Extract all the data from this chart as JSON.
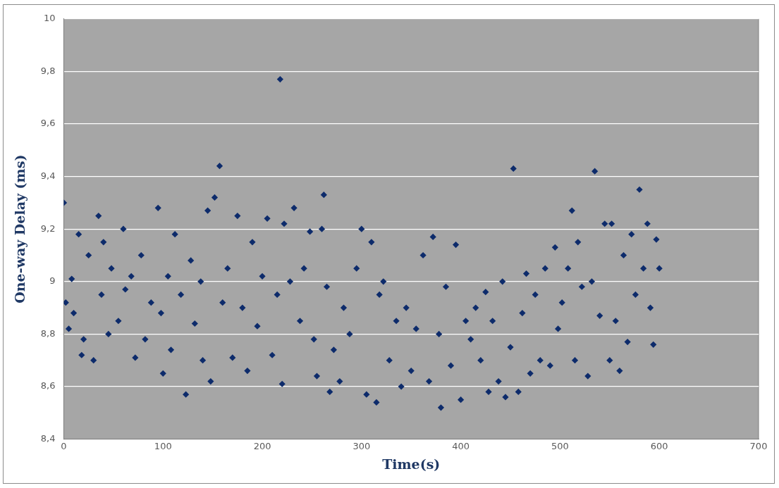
{
  "chart_data": {
    "type": "scatter",
    "xlabel": "Time(s)",
    "ylabel": "One-way Delay (ms)",
    "xlim": [
      0,
      700
    ],
    "xticks": [
      0,
      100,
      200,
      300,
      400,
      500,
      600,
      700
    ],
    "ylim": [
      8.4,
      10
    ],
    "yticks": [
      {
        "value": 8.4,
        "label": "8,4"
      },
      {
        "value": 8.6,
        "label": "8,6"
      },
      {
        "value": 8.8,
        "label": "8,8"
      },
      {
        "value": 9,
        "label": "9"
      },
      {
        "value": 9.2,
        "label": "9,2"
      },
      {
        "value": 9.4,
        "label": "9,4"
      },
      {
        "value": 9.6,
        "label": "9,6"
      },
      {
        "value": 9.8,
        "label": "9,8"
      },
      {
        "value": 10,
        "label": "10"
      }
    ],
    "grid": "y",
    "legend": false,
    "marker": "diamond",
    "series": [
      {
        "color": "#0d2b6b",
        "x": [
          0,
          2,
          5,
          8,
          10,
          15,
          18,
          20,
          25,
          30,
          35,
          38,
          40,
          45,
          48,
          55,
          60,
          62,
          68,
          72,
          78,
          82,
          88,
          95,
          98,
          100,
          105,
          108,
          112,
          118,
          123,
          128,
          132,
          138,
          140,
          145,
          148,
          152,
          157,
          160,
          165,
          170,
          175,
          180,
          185,
          190,
          195,
          200,
          205,
          210,
          215,
          218,
          220,
          222,
          228,
          232,
          238,
          242,
          248,
          252,
          255,
          260,
          262,
          265,
          268,
          272,
          278,
          282,
          288,
          295,
          300,
          305,
          310,
          315,
          318,
          322,
          328,
          335,
          340,
          345,
          350,
          355,
          362,
          368,
          372,
          378,
          380,
          385,
          390,
          395,
          400,
          405,
          410,
          415,
          420,
          425,
          428,
          432,
          438,
          442,
          445,
          450,
          453,
          458,
          462,
          466,
          470,
          475,
          480,
          485,
          490,
          495,
          498,
          502,
          508,
          512,
          515,
          518,
          522,
          528,
          532,
          535,
          540,
          545,
          550,
          552,
          556,
          560,
          564,
          568,
          572,
          576,
          580,
          584,
          588,
          591,
          594,
          597,
          600
        ],
        "values": [
          9.3,
          8.92,
          8.82,
          9.01,
          8.88,
          9.18,
          8.72,
          8.78,
          9.1,
          8.7,
          9.25,
          8.95,
          9.15,
          8.8,
          9.05,
          8.85,
          9.2,
          8.97,
          9.02,
          8.71,
          9.1,
          8.78,
          8.92,
          9.28,
          8.88,
          8.65,
          9.02,
          8.74,
          9.18,
          8.95,
          8.57,
          9.08,
          8.84,
          9.0,
          8.7,
          9.27,
          8.62,
          9.32,
          9.44,
          8.92,
          9.05,
          8.71,
          9.25,
          8.9,
          8.66,
          9.15,
          8.83,
          9.02,
          9.24,
          8.72,
          8.95,
          9.77,
          8.61,
          9.22,
          9.0,
          9.28,
          8.85,
          9.05,
          9.19,
          8.78,
          8.64,
          9.2,
          9.33,
          8.98,
          8.58,
          8.74,
          8.62,
          8.9,
          8.8,
          9.05,
          9.2,
          8.57,
          9.15,
          8.54,
          8.95,
          9.0,
          8.7,
          8.85,
          8.6,
          8.9,
          8.66,
          8.82,
          9.1,
          8.62,
          9.17,
          8.8,
          8.52,
          8.98,
          8.68,
          9.14,
          8.55,
          8.85,
          8.78,
          8.9,
          8.7,
          8.96,
          8.58,
          8.85,
          8.62,
          9.0,
          8.56,
          8.75,
          9.43,
          8.58,
          8.88,
          9.03,
          8.65,
          8.95,
          8.7,
          9.05,
          8.68,
          9.13,
          8.82,
          8.92,
          9.05,
          9.27,
          8.7,
          9.15,
          8.98,
          8.64,
          9.0,
          9.42,
          8.87,
          9.22,
          8.7,
          9.22,
          8.85,
          8.66,
          9.1,
          8.77,
          9.18,
          8.95,
          9.35,
          9.05,
          9.22,
          8.9,
          8.76,
          9.16,
          9.05
        ]
      }
    ]
  }
}
